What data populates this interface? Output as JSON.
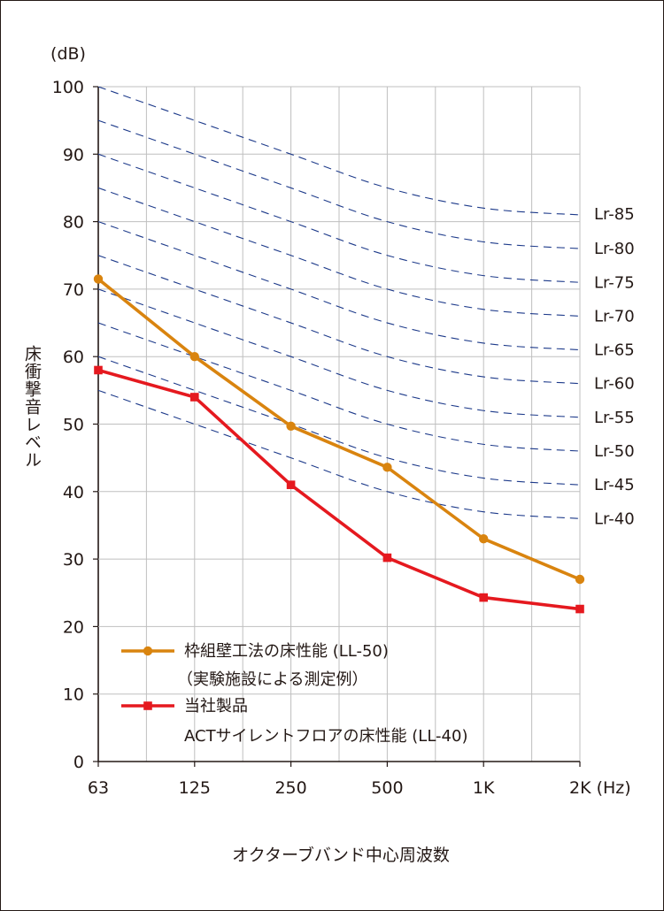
{
  "chart_data": {
    "type": "line",
    "y_unit": "(dB)",
    "ylabel": "床衝撃音レベル",
    "xlabel": "オクターブバンド中心周波数",
    "categories": [
      "63",
      "125",
      "250",
      "500",
      "1K",
      "2K (Hz)"
    ],
    "ylim": [
      0,
      100
    ],
    "y_ticks": [
      0,
      10,
      20,
      30,
      40,
      50,
      60,
      70,
      80,
      90,
      100
    ],
    "grid": true,
    "legend_position": "bottom-left",
    "series": [
      {
        "name": "枠組壁工法の床性能 (LL-50)",
        "name_line2": "（実験施設による測定例）",
        "color": "#d9840f",
        "marker": "circle",
        "values": [
          71.5,
          60,
          49.7,
          43.6,
          33,
          27
        ]
      },
      {
        "name": "当社製品",
        "name_line2": "ACTサイレントフロアの床性能 (LL-40)",
        "color": "#e5191f",
        "marker": "square",
        "values": [
          58,
          54,
          41,
          30.2,
          24.3,
          22.6
        ]
      }
    ],
    "reference_curves": {
      "color": "#1d3a8a",
      "style": "dashed",
      "labels": [
        "Lr-85",
        "Lr-80",
        "Lr-75",
        "Lr-70",
        "Lr-65",
        "Lr-60",
        "Lr-55",
        "Lr-50",
        "Lr-45",
        "Lr-40"
      ],
      "levels_at_500": [
        85,
        80,
        75,
        70,
        65,
        60,
        55,
        50,
        45,
        40
      ],
      "offsets_from_500": [
        15,
        10,
        5,
        0,
        -3,
        -4
      ]
    }
  }
}
